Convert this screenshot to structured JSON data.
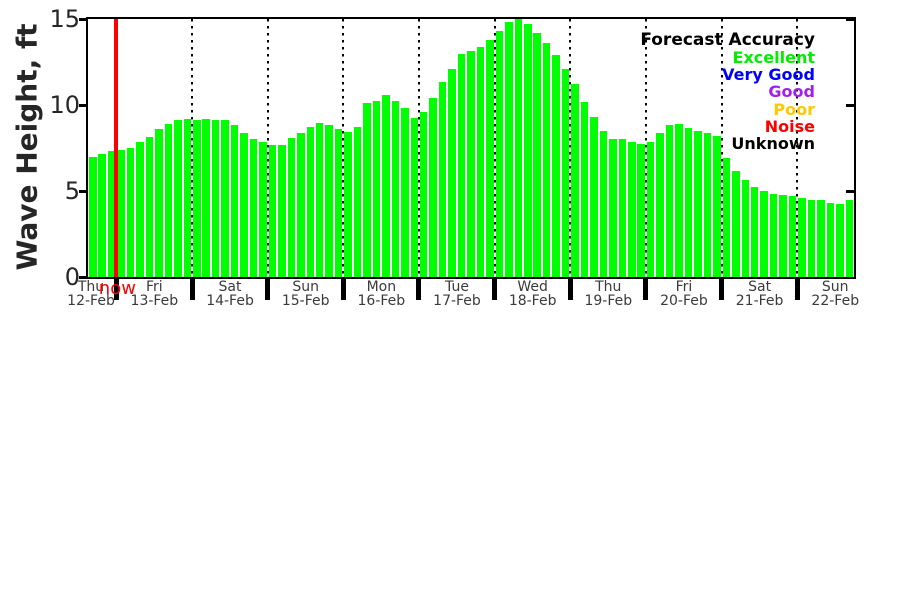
{
  "chart_data": {
    "type": "bar",
    "title": "",
    "ylabel": "Wave Height, ft",
    "xlabel": "",
    "ylim": [
      0,
      15
    ],
    "yticks": [
      0,
      5,
      10,
      15
    ],
    "grid": "vertical-dotted-day-boundaries",
    "bar_color": "#00FF00",
    "now_line_color": "#FF0000",
    "now_label": "now",
    "bar_unit": "ft",
    "bars_per_full_day": 8,
    "days": [
      {
        "name": "Thu",
        "date": "12-Feb",
        "values": [
          7.0,
          7.15,
          7.3
        ]
      },
      {
        "name": "Fri",
        "date": "13-Feb",
        "values": [
          7.4,
          7.5,
          7.85,
          8.15,
          8.6,
          8.9,
          9.1,
          9.2
        ]
      },
      {
        "name": "Sat",
        "date": "14-Feb",
        "values": [
          9.1,
          9.2,
          9.1,
          9.1,
          8.85,
          8.35,
          8.0,
          7.85
        ]
      },
      {
        "name": "Sun",
        "date": "15-Feb",
        "values": [
          7.7,
          7.65,
          8.1,
          8.4,
          8.7,
          8.95,
          8.85,
          8.6
        ]
      },
      {
        "name": "Mon",
        "date": "16-Feb",
        "values": [
          8.45,
          8.7,
          10.1,
          10.25,
          10.6,
          10.25,
          9.8,
          9.25
        ]
      },
      {
        "name": "Tue",
        "date": "17-Feb",
        "values": [
          9.6,
          10.4,
          11.35,
          12.1,
          12.95,
          13.15,
          13.4,
          13.8
        ]
      },
      {
        "name": "Wed",
        "date": "18-Feb",
        "values": [
          14.3,
          14.85,
          15.0,
          14.7,
          14.2,
          13.6,
          12.9,
          12.1
        ]
      },
      {
        "name": "Thu",
        "date": "19-Feb",
        "values": [
          11.25,
          10.15,
          9.3,
          8.5,
          8.05,
          8.0,
          7.85,
          7.75
        ]
      },
      {
        "name": "Fri",
        "date": "20-Feb",
        "values": [
          7.85,
          8.4,
          8.85,
          8.9,
          8.65,
          8.5,
          8.4,
          8.2
        ]
      },
      {
        "name": "Sat",
        "date": "21-Feb",
        "values": [
          6.9,
          6.15,
          5.65,
          5.25,
          5.0,
          4.85,
          4.75,
          4.7
        ]
      },
      {
        "name": "Sun",
        "date": "22-Feb",
        "values": [
          4.6,
          4.5,
          4.45,
          4.3,
          4.25,
          4.5
        ]
      }
    ],
    "legend": {
      "title": "Forecast Accuracy",
      "position": "top-right",
      "items": [
        {
          "label": "Excellent",
          "color": "#00EE00"
        },
        {
          "label": "Very Good",
          "color": "#0000FF"
        },
        {
          "label": "Good",
          "color": "#A020F0"
        },
        {
          "label": "Poor",
          "color": "#FFC800"
        },
        {
          "label": "Noise",
          "color": "#FF0000"
        },
        {
          "label": "Unknown",
          "color": "#000000"
        }
      ]
    }
  }
}
